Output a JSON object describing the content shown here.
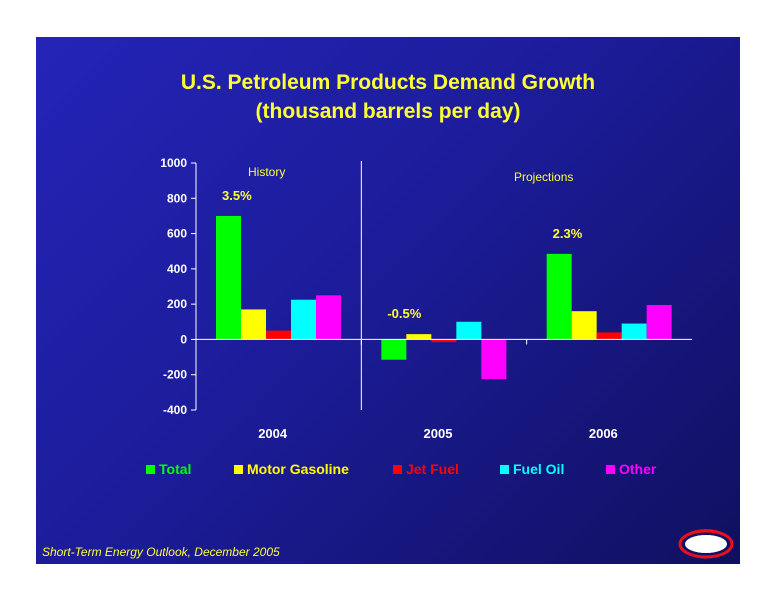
{
  "slide": {
    "footer": "Short-Term Energy Outlook, December 2005",
    "logo_text": "eia"
  },
  "colors": {
    "background": "#1c1c9a",
    "title": "#ffff33",
    "axis": "#ffffff",
    "Total": "#00ff00",
    "Motor Gasoline": "#ffff00",
    "Jet Fuel": "#ff0000",
    "Fuel Oil": "#00ffff",
    "Other": "#ff00ff"
  },
  "chart_data": {
    "type": "bar",
    "title": "U.S. Petroleum Products Demand Growth",
    "subtitle": "(thousand barrels per day)",
    "categories": [
      "2004",
      "2005",
      "2006"
    ],
    "series": [
      {
        "name": "Total",
        "values": [
          700,
          -115,
          485
        ]
      },
      {
        "name": "Motor Gasoline",
        "values": [
          170,
          30,
          160
        ]
      },
      {
        "name": "Jet Fuel",
        "values": [
          50,
          -15,
          40
        ]
      },
      {
        "name": "Fuel Oil",
        "values": [
          225,
          100,
          90
        ]
      },
      {
        "name": "Other",
        "values": [
          250,
          -225,
          195
        ]
      }
    ],
    "ylim": [
      -400,
      1000
    ],
    "yticks": [
      "1000",
      "800",
      "600",
      "400",
      "200",
      "0",
      "-200",
      "-400"
    ],
    "annotations": [
      {
        "text": "3.5%",
        "category": "2004"
      },
      {
        "text": "-0.5%",
        "category": "2005"
      },
      {
        "text": "2.3%",
        "category": "2006"
      }
    ],
    "period_labels": [
      "History",
      "Projections"
    ],
    "legend_position": "bottom",
    "grid": false
  }
}
